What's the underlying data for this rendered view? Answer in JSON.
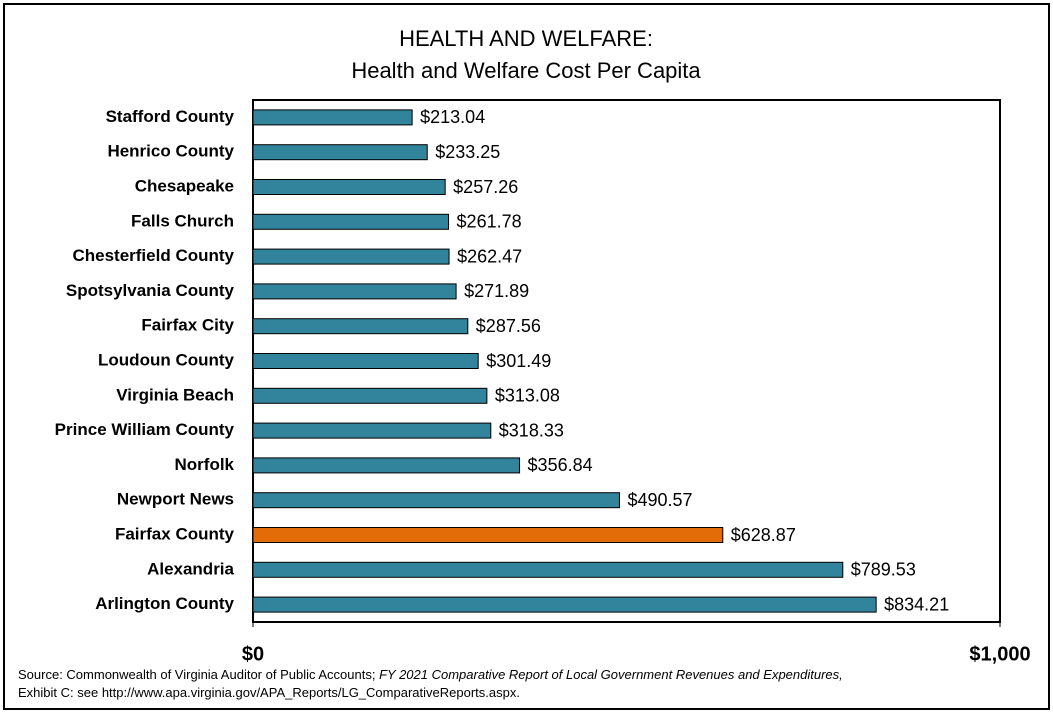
{
  "chart_data": {
    "type": "bar",
    "orientation": "horizontal",
    "title": "HEALTH AND WELFARE:",
    "subtitle": "Health and Welfare Cost Per Capita",
    "categories": [
      "Stafford County",
      "Henrico County",
      "Chesapeake",
      "Falls Church",
      "Chesterfield County",
      "Spotsylvania County",
      "Fairfax City",
      "Loudoun County",
      "Virginia Beach",
      "Prince William County",
      "Norfolk",
      "Newport News",
      "Fairfax County",
      "Alexandria",
      "Arlington County"
    ],
    "values": [
      213.04,
      233.25,
      257.26,
      261.78,
      262.47,
      271.89,
      287.56,
      301.49,
      313.08,
      318.33,
      356.84,
      490.57,
      628.87,
      789.53,
      834.21
    ],
    "value_labels": [
      "$213.04",
      "$233.25",
      "$257.26",
      "$261.78",
      "$262.47",
      "$271.89",
      "$287.56",
      "$301.49",
      "$313.08",
      "$318.33",
      "$356.84",
      "$490.57",
      "$628.87",
      "$789.53",
      "$834.21"
    ],
    "colors": [
      "#31849b",
      "#31849b",
      "#31849b",
      "#31849b",
      "#31849b",
      "#31849b",
      "#31849b",
      "#31849b",
      "#31849b",
      "#31849b",
      "#31849b",
      "#31849b",
      "#e36c09",
      "#31849b",
      "#31849b"
    ],
    "xlim": [
      0,
      1000
    ],
    "xticks": [
      {
        "value": 0,
        "label": "$0"
      },
      {
        "value": 1000,
        "label": "$1,000"
      }
    ],
    "grid": false,
    "source": {
      "text": "Source: Commonwealth of Virginia Auditor of Public Accounts;",
      "italic": "FY 2021 Comparative Report of Local Government Revenues and Expenditures,",
      "line2": "Exhibit C: see http://www.apa.virginia.gov/APA_Reports/LG_ComparativeReports.aspx."
    }
  }
}
